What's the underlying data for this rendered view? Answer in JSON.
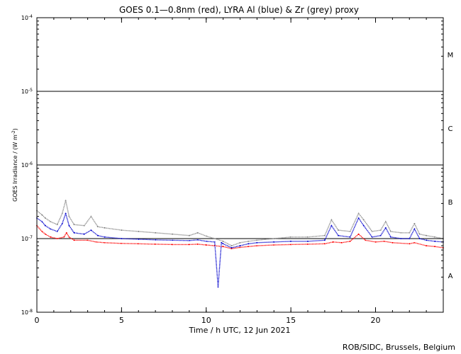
{
  "chart_data": {
    "type": "scatter",
    "title": "GOES 0.1—0.8nm (red), LYRA Al (blue) & Zr (grey) proxy",
    "xlabel": "Time / h UTC, 12 Jun 2021",
    "ylabel_main": "GOES Irradiance / (W m",
    "ylabel_sup": "-2",
    "ylabel_close": ")",
    "credit": "ROB/SIDC, Brussels, Belgium",
    "y_scale": "log",
    "xlim": [
      0,
      24
    ],
    "ylim": [
      1e-08,
      0.0001
    ],
    "x_ticks": [
      {
        "value": 0,
        "label": "0"
      },
      {
        "value": 5,
        "label": "5"
      },
      {
        "value": 10,
        "label": "10"
      },
      {
        "value": 15,
        "label": "15"
      },
      {
        "value": 20,
        "label": "20"
      }
    ],
    "y_ticks": [
      {
        "exp": -8,
        "base": "10",
        "sup": "-8"
      },
      {
        "exp": -7,
        "base": "10",
        "sup": "-7"
      },
      {
        "exp": -6,
        "base": "10",
        "sup": "-6"
      },
      {
        "exp": -5,
        "base": "10",
        "sup": "-5"
      },
      {
        "exp": -4,
        "base": "10",
        "sup": "-4"
      }
    ],
    "flare_classes": [
      {
        "label": "A",
        "exp": -7.5
      },
      {
        "label": "B",
        "exp": -6.5
      },
      {
        "label": "C",
        "exp": -5.5
      },
      {
        "label": "M",
        "exp": -4.5
      }
    ],
    "class_lines": [
      1e-07,
      1e-06,
      1e-05
    ],
    "series": [
      {
        "color": "#ff0000",
        "points": [
          [
            0,
            1.5e-07
          ],
          [
            0.3,
            1.25e-07
          ],
          [
            0.5,
            1.15e-07
          ],
          [
            0.8,
            1.05e-07
          ],
          [
            1.2,
            1e-07
          ],
          [
            1.6,
            1.05e-07
          ],
          [
            1.75,
            1.2e-07
          ],
          [
            1.9,
            1.05e-07
          ],
          [
            2.2,
            9.5e-08
          ],
          [
            3,
            9.5e-08
          ],
          [
            3.5,
            9e-08
          ],
          [
            4,
            8.8e-08
          ],
          [
            5,
            8.6e-08
          ],
          [
            6,
            8.5e-08
          ],
          [
            7,
            8.4e-08
          ],
          [
            8,
            8.3e-08
          ],
          [
            9,
            8.3e-08
          ],
          [
            9.5,
            8.4e-08
          ],
          [
            10,
            8.2e-08
          ],
          [
            10.5,
            8e-08
          ],
          [
            11,
            7.8e-08
          ],
          [
            11.5,
            7.3e-08
          ],
          [
            12,
            7.6e-08
          ],
          [
            12.5,
            7.8e-08
          ],
          [
            13,
            8e-08
          ],
          [
            14,
            8.2e-08
          ],
          [
            15,
            8.3e-08
          ],
          [
            16,
            8.4e-08
          ],
          [
            17,
            8.5e-08
          ],
          [
            17.5,
            9e-08
          ],
          [
            18,
            8.8e-08
          ],
          [
            18.5,
            9.2e-08
          ],
          [
            19,
            1.15e-07
          ],
          [
            19.4,
            9.5e-08
          ],
          [
            20,
            9e-08
          ],
          [
            20.5,
            9.2e-08
          ],
          [
            21,
            8.8e-08
          ],
          [
            22,
            8.5e-08
          ],
          [
            22.3,
            8.8e-08
          ],
          [
            23,
            8e-08
          ],
          [
            23.5,
            7.8e-08
          ],
          [
            24,
            7.5e-08
          ]
        ]
      },
      {
        "color": "#0000cc",
        "points": [
          [
            0,
            1.9e-07
          ],
          [
            0.3,
            1.7e-07
          ],
          [
            0.5,
            1.5e-07
          ],
          [
            0.8,
            1.35e-07
          ],
          [
            1.2,
            1.25e-07
          ],
          [
            1.5,
            1.6e-07
          ],
          [
            1.7,
            2.2e-07
          ],
          [
            1.9,
            1.5e-07
          ],
          [
            2.2,
            1.2e-07
          ],
          [
            2.8,
            1.15e-07
          ],
          [
            3.2,
            1.3e-07
          ],
          [
            3.6,
            1.1e-07
          ],
          [
            4,
            1.05e-07
          ],
          [
            5,
            1e-07
          ],
          [
            6,
            9.8e-08
          ],
          [
            7,
            9.6e-08
          ],
          [
            8,
            9.5e-08
          ],
          [
            9,
            9.4e-08
          ],
          [
            9.5,
            9.6e-08
          ],
          [
            10,
            9.2e-08
          ],
          [
            10.5,
            9e-08
          ],
          [
            10.7,
            2.2e-08
          ],
          [
            10.9,
            8.8e-08
          ],
          [
            11,
            8.5e-08
          ],
          [
            11.5,
            7.5e-08
          ],
          [
            12,
            8e-08
          ],
          [
            12.5,
            8.5e-08
          ],
          [
            13,
            8.8e-08
          ],
          [
            14,
            9e-08
          ],
          [
            15,
            9.2e-08
          ],
          [
            16,
            9.2e-08
          ],
          [
            17,
            9.5e-08
          ],
          [
            17.4,
            1.5e-07
          ],
          [
            17.8,
            1.1e-07
          ],
          [
            18.5,
            1.05e-07
          ],
          [
            19,
            1.9e-07
          ],
          [
            19.3,
            1.5e-07
          ],
          [
            19.8,
            1.05e-07
          ],
          [
            20.3,
            1.1e-07
          ],
          [
            20.6,
            1.4e-07
          ],
          [
            20.9,
            1.05e-07
          ],
          [
            21.5,
            1e-07
          ],
          [
            22,
            1e-07
          ],
          [
            22.3,
            1.35e-07
          ],
          [
            22.6,
            1e-07
          ],
          [
            23,
            9.5e-08
          ],
          [
            23.5,
            9.2e-08
          ],
          [
            24,
            9e-08
          ]
        ]
      },
      {
        "color": "#888888",
        "points": [
          [
            0,
            2.4e-07
          ],
          [
            0.3,
            2.1e-07
          ],
          [
            0.5,
            1.9e-07
          ],
          [
            0.8,
            1.7e-07
          ],
          [
            1.2,
            1.55e-07
          ],
          [
            1.5,
            2.2e-07
          ],
          [
            1.7,
            3.3e-07
          ],
          [
            1.9,
            2e-07
          ],
          [
            2.2,
            1.55e-07
          ],
          [
            2.8,
            1.5e-07
          ],
          [
            3.2,
            2e-07
          ],
          [
            3.6,
            1.45e-07
          ],
          [
            4,
            1.4e-07
          ],
          [
            5,
            1.3e-07
          ],
          [
            6,
            1.25e-07
          ],
          [
            7,
            1.2e-07
          ],
          [
            8,
            1.15e-07
          ],
          [
            9,
            1.1e-07
          ],
          [
            9.5,
            1.2e-07
          ],
          [
            10,
            1.08e-07
          ],
          [
            10.5,
            1e-07
          ],
          [
            11,
            9.2e-08
          ],
          [
            11.5,
            8e-08
          ],
          [
            12,
            8.8e-08
          ],
          [
            12.5,
            9.2e-08
          ],
          [
            13,
            9.5e-08
          ],
          [
            14,
            1e-07
          ],
          [
            15,
            1.05e-07
          ],
          [
            16,
            1.05e-07
          ],
          [
            17,
            1.1e-07
          ],
          [
            17.4,
            1.8e-07
          ],
          [
            17.8,
            1.3e-07
          ],
          [
            18.5,
            1.25e-07
          ],
          [
            19,
            2.2e-07
          ],
          [
            19.3,
            1.8e-07
          ],
          [
            19.8,
            1.25e-07
          ],
          [
            20.3,
            1.3e-07
          ],
          [
            20.6,
            1.7e-07
          ],
          [
            20.9,
            1.25e-07
          ],
          [
            21.5,
            1.2e-07
          ],
          [
            22,
            1.2e-07
          ],
          [
            22.3,
            1.6e-07
          ],
          [
            22.6,
            1.15e-07
          ],
          [
            23,
            1.1e-07
          ],
          [
            23.5,
            1.05e-07
          ],
          [
            24,
            1e-07
          ]
        ]
      }
    ]
  }
}
